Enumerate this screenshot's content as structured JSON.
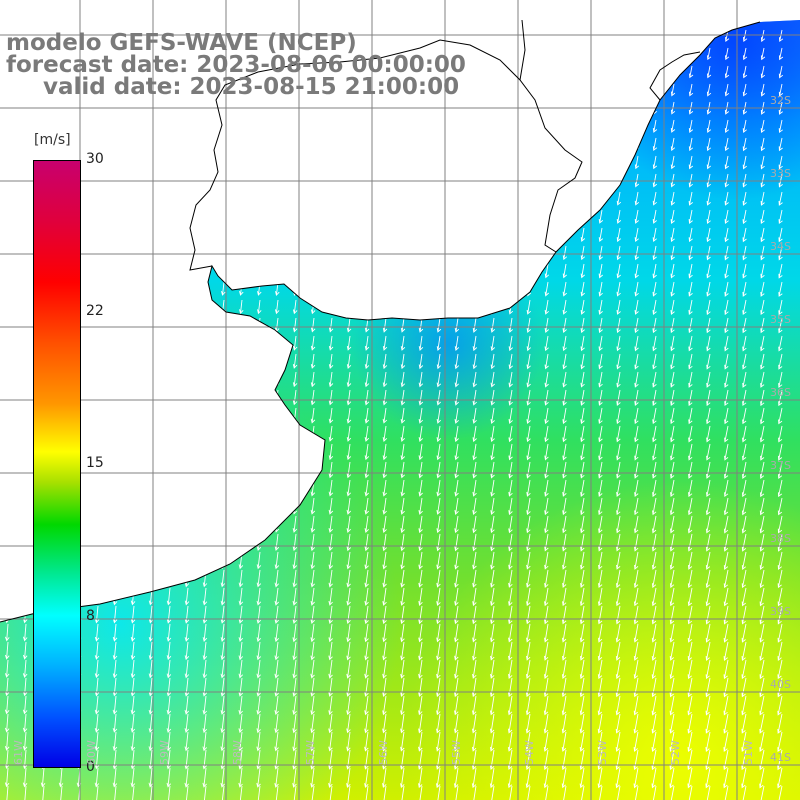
{
  "title": {
    "line1": "modelo GEFS-WAVE (NCEP)",
    "line2": "forecast date: 2023-08-06 00:00:00",
    "line3": "valid date: 2023-08-15 21:00:00"
  },
  "colorbar": {
    "unit": "[m/s]",
    "min": 0,
    "max": 30,
    "ticks": [
      "30",
      "22",
      "15",
      "8",
      "0"
    ],
    "colors": [
      "#0000e6",
      "#0050ff",
      "#00b4ff",
      "#00ffff",
      "#00e890",
      "#00d800",
      "#a8e000",
      "#ffff00",
      "#ff9600",
      "#ff5000",
      "#ff0000",
      "#e0003c",
      "#c8006e"
    ]
  },
  "map": {
    "longitude_labels": [
      "61W",
      "60W",
      "59W",
      "58W",
      "57W",
      "56W",
      "55W",
      "54W",
      "53W",
      "52W",
      "51W"
    ],
    "latitude_labels": [
      "32S",
      "33S",
      "34S",
      "35S",
      "36S",
      "37S",
      "38S",
      "39S",
      "40S",
      "41S"
    ],
    "wind_direction": "from north-northwest",
    "land_color": "#ffffff",
    "grid_color": "#808080"
  }
}
